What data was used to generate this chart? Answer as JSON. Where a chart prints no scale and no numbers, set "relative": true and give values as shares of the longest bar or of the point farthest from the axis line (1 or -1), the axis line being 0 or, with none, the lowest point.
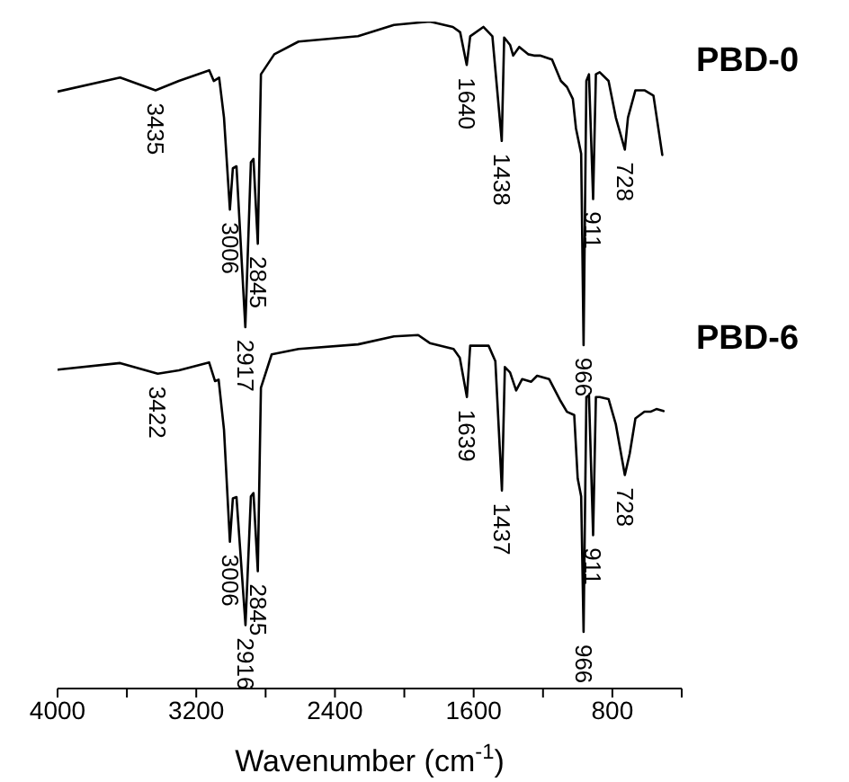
{
  "chart_data": {
    "type": "line",
    "xlabel": "Wavenumber (cm$^{-1}$)",
    "relative": true,
    "xlim": [
      4000,
      400
    ],
    "xticks": [
      4000,
      {
        "value": 3600,
        "label": null
      },
      3200,
      {
        "value": 2800,
        "label": null
      },
      2400,
      {
        "value": 2000,
        "label": null
      },
      1600,
      {
        "value": 1200,
        "label": null
      },
      800,
      {
        "value": 400,
        "label": null
      }
    ],
    "tick_labels": "x",
    "marker": "none",
    "line_style": "solid",
    "series": [
      {
        "name": "PBD-0",
        "color": "#000000",
        "x": [
          4000,
          3639,
          3435,
          3300,
          3125,
          3099,
          3068,
          3040,
          3006,
          2989,
          2968,
          2917,
          2885,
          2870,
          2845,
          2827,
          2750,
          2610,
          2267,
          2060,
          1853,
          1720,
          1678,
          1640,
          1620,
          1544,
          1492,
          1438,
          1424,
          1390,
          1372,
          1337,
          1286,
          1252,
          1217,
          1148,
          1097,
          1062,
          1028,
          1010,
          980,
          966,
          950,
          935,
          911,
          895,
          873,
          822,
          780,
          728,
          710,
          667,
          615,
          563,
          512
        ],
        "values": [
          0.895,
          0.916,
          0.897,
          0.911,
          0.927,
          0.911,
          0.916,
          0.856,
          0.718,
          0.78,
          0.783,
          0.542,
          0.789,
          0.794,
          0.667,
          0.921,
          0.951,
          0.97,
          0.978,
          0.995,
          1,
          0.992,
          0.984,
          0.935,
          0.978,
          0.992,
          0.978,
          0.821,
          0.976,
          0.965,
          0.949,
          0.962,
          0.951,
          0.949,
          0.949,
          0.943,
          0.911,
          0.902,
          0.884,
          0.84,
          0.802,
          0.515,
          0.911,
          0.921,
          0.734,
          0.921,
          0.924,
          0.911,
          0.856,
          0.808,
          0.856,
          0.897,
          0.897,
          0.889,
          0.8
        ]
      },
      {
        "name": "PBD-6",
        "color": "#000000",
        "x": [
          4000,
          3639,
          3422,
          3300,
          3126,
          3092,
          3071,
          3040,
          3006,
          2989,
          2968,
          2916,
          2885,
          2870,
          2845,
          2827,
          2765,
          2610,
          2267,
          2060,
          1920,
          1853,
          1716,
          1680,
          1639,
          1620,
          1514,
          1475,
          1437,
          1420,
          1390,
          1355,
          1320,
          1268,
          1234,
          1165,
          1103,
          1062,
          1020,
          1000,
          980,
          966,
          950,
          935,
          911,
          895,
          873,
          822,
          780,
          728,
          700,
          667,
          615,
          580,
          546,
          505
        ],
        "values": [
          0.478,
          0.488,
          0.472,
          0.477,
          0.489,
          0.461,
          0.463,
          0.388,
          0.22,
          0.285,
          0.287,
          0.095,
          0.288,
          0.293,
          0.176,
          0.451,
          0.501,
          0.509,
          0.516,
          0.528,
          0.53,
          0.518,
          0.509,
          0.496,
          0.437,
          0.514,
          0.514,
          0.491,
          0.297,
          0.482,
          0.474,
          0.447,
          0.464,
          0.46,
          0.469,
          0.464,
          0.433,
          0.415,
          0.41,
          0.315,
          0.288,
          0.085,
          0.437,
          0.44,
          0.23,
          0.437,
          0.437,
          0.434,
          0.396,
          0.32,
          0.352,
          0.405,
          0.415,
          0.415,
          0.419,
          0.416
        ]
      }
    ],
    "annotations": [
      {
        "text": "3435",
        "x": 3435,
        "y": 0.897
      },
      {
        "text": "3006",
        "x": 3006,
        "y": 0.718
      },
      {
        "text": "2917",
        "x": 2917,
        "y": 0.542
      },
      {
        "text": "2845",
        "x": 2845,
        "y": 0.667
      },
      {
        "text": "1640",
        "x": 1640,
        "y": 0.935
      },
      {
        "text": "1438",
        "x": 1438,
        "y": 0.821
      },
      {
        "text": "966",
        "x": 966,
        "y": 0.515
      },
      {
        "text": "911",
        "x": 911,
        "y": 0.734
      },
      {
        "text": "728",
        "x": 728,
        "y": 0.808
      },
      {
        "text": "3422",
        "x": 3422,
        "y": 0.472
      },
      {
        "text": "3006",
        "x": 3006,
        "y": 0.22
      },
      {
        "text": "2916",
        "x": 2916,
        "y": 0.095
      },
      {
        "text": "2845",
        "x": 2845,
        "y": 0.176
      },
      {
        "text": "1639",
        "x": 1639,
        "y": 0.437
      },
      {
        "text": "1437",
        "x": 1437,
        "y": 0.297
      },
      {
        "text": "966",
        "x": 966,
        "y": 0.085
      },
      {
        "text": "911",
        "x": 911,
        "y": 0.23
      },
      {
        "text": "728",
        "x": 728,
        "y": 0.32
      }
    ]
  }
}
